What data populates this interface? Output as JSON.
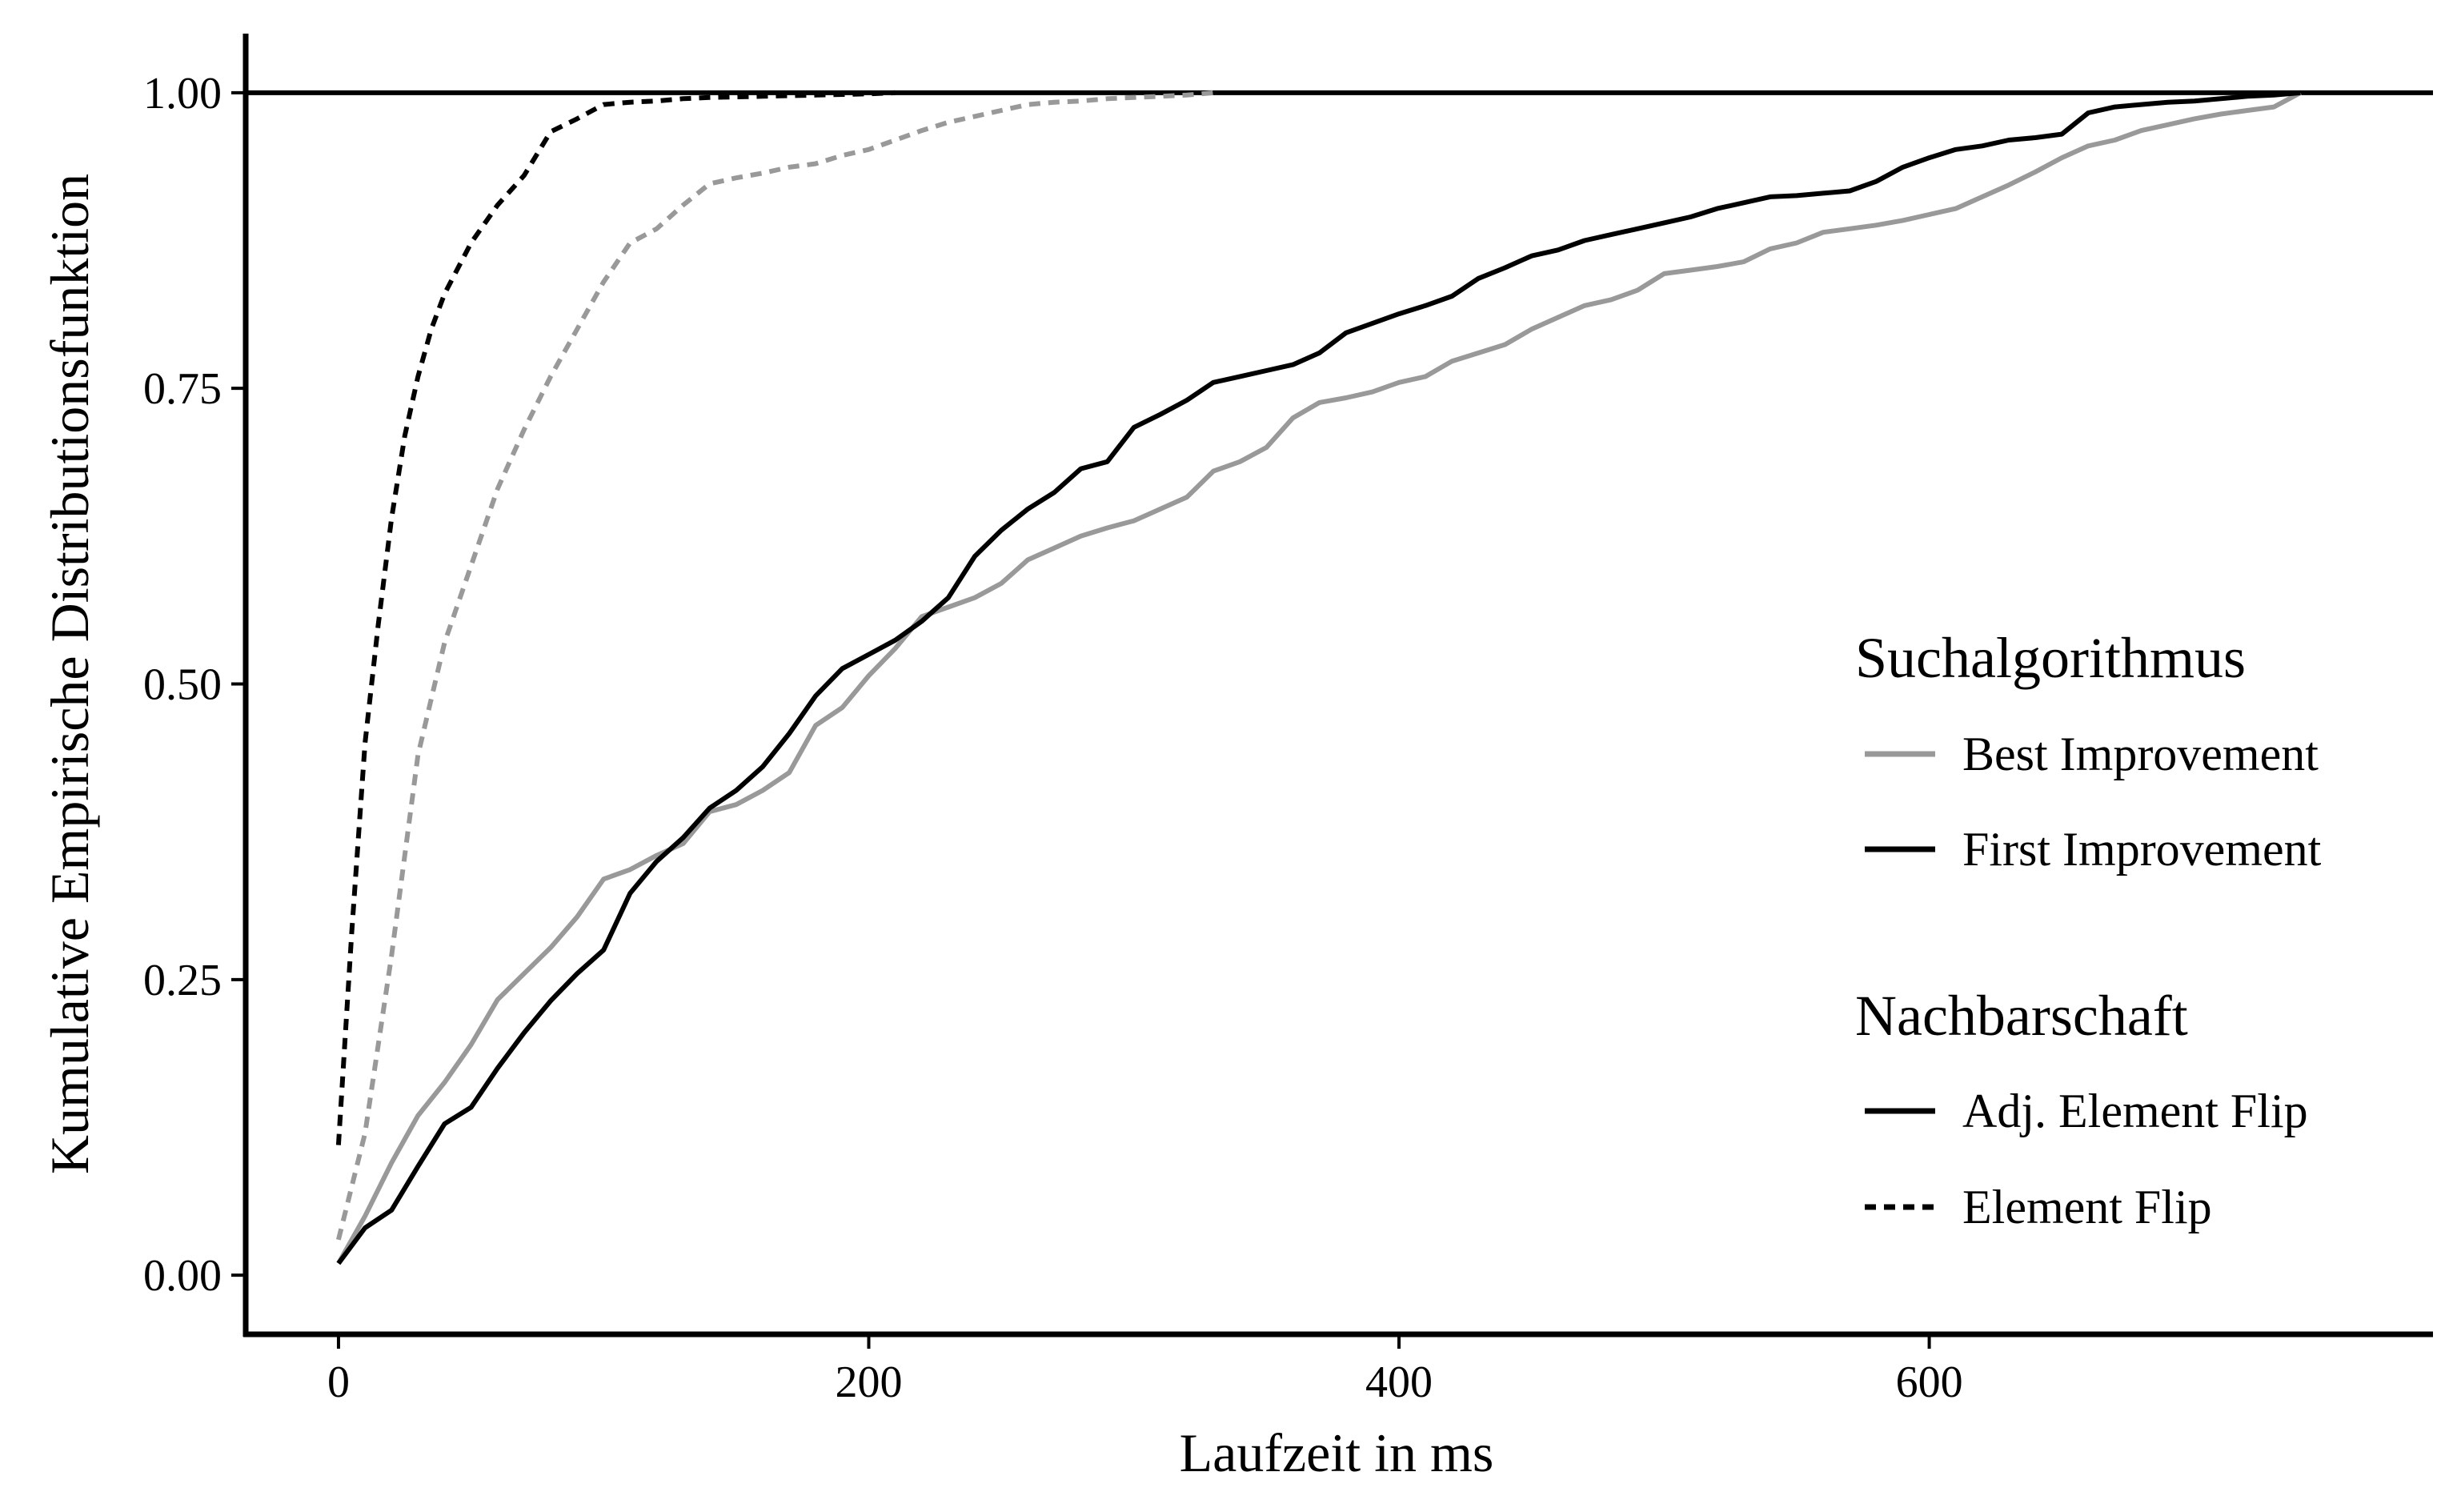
{
  "chart_data": {
    "type": "line",
    "title": "",
    "xlabel": "Laufzeit in ms",
    "ylabel": "Kumulative Empirische Distributionsfunktion",
    "xlim": [
      -35,
      790
    ],
    "ylim": [
      -0.05,
      1.05
    ],
    "x_ticks": [
      0,
      200,
      400,
      600
    ],
    "x_tick_labels": [
      "0",
      "200",
      "400",
      "600"
    ],
    "y_ticks": [
      0,
      0.25,
      0.5,
      0.75,
      1.0
    ],
    "y_tick_labels": [
      "0.00",
      "0.25",
      "0.50",
      "0.75",
      "1.00"
    ],
    "grid": false,
    "reference_line": {
      "y": 1.0
    },
    "legend_position": "right",
    "legend": [
      {
        "title": "Suchalgorithmus",
        "entries": [
          {
            "label": "Best Improvement",
            "color": "#999999",
            "dash": "solid"
          },
          {
            "label": "First Improvement",
            "color": "#000000",
            "dash": "solid"
          }
        ]
      },
      {
        "title": "Nachbarschaft",
        "entries": [
          {
            "label": "Adj. Element Flip",
            "color": "#000000",
            "dash": "solid"
          },
          {
            "label": "Element Flip",
            "color": "#000000",
            "dash": "dashed"
          }
        ]
      }
    ],
    "series": [
      {
        "algorithm": "Best Improvement",
        "neighborhood": "Adj. Element Flip",
        "color": "#999999",
        "dash": "solid",
        "x": [
          0,
          10,
          20,
          30,
          40,
          50,
          60,
          70,
          80,
          90,
          100,
          110,
          120,
          130,
          140,
          150,
          160,
          170,
          180,
          190,
          200,
          210,
          220,
          230,
          240,
          250,
          260,
          270,
          280,
          290,
          300,
          310,
          320,
          330,
          340,
          350,
          360,
          370,
          380,
          390,
          400,
          410,
          420,
          430,
          440,
          450,
          460,
          470,
          480,
          490,
          500,
          510,
          520,
          530,
          540,
          550,
          560,
          570,
          580,
          590,
          600,
          610,
          620,
          630,
          640,
          650,
          660,
          670,
          680,
          690,
          700,
          710,
          720,
          730,
          740
        ],
        "y": [
          0.01,
          0.05,
          0.095,
          0.135,
          0.163,
          0.195,
          0.233,
          0.255,
          0.277,
          0.303,
          0.335,
          0.343,
          0.355,
          0.365,
          0.392,
          0.398,
          0.41,
          0.425,
          0.465,
          0.48,
          0.507,
          0.53,
          0.557,
          0.565,
          0.573,
          0.585,
          0.605,
          0.615,
          0.625,
          0.632,
          0.638,
          0.648,
          0.658,
          0.68,
          0.688,
          0.7,
          0.725,
          0.738,
          0.742,
          0.747,
          0.755,
          0.76,
          0.773,
          0.78,
          0.787,
          0.8,
          0.81,
          0.82,
          0.825,
          0.833,
          0.847,
          0.85,
          0.853,
          0.857,
          0.868,
          0.873,
          0.882,
          0.885,
          0.888,
          0.892,
          0.897,
          0.902,
          0.912,
          0.922,
          0.933,
          0.945,
          0.955,
          0.96,
          0.968,
          0.973,
          0.978,
          0.982,
          0.985,
          0.988,
          1.0
        ]
      },
      {
        "algorithm": "First Improvement",
        "neighborhood": "Adj. Element Flip",
        "color": "#000000",
        "dash": "solid",
        "x": [
          0,
          10,
          20,
          30,
          40,
          50,
          60,
          70,
          80,
          90,
          100,
          110,
          120,
          130,
          140,
          150,
          160,
          170,
          180,
          190,
          200,
          210,
          220,
          230,
          240,
          250,
          260,
          270,
          280,
          290,
          300,
          310,
          320,
          330,
          340,
          350,
          360,
          370,
          380,
          390,
          400,
          410,
          420,
          430,
          440,
          450,
          460,
          470,
          480,
          490,
          500,
          510,
          520,
          530,
          540,
          550,
          560,
          570,
          580,
          590,
          600,
          610,
          620,
          630,
          640,
          650,
          660,
          670,
          680,
          690,
          700,
          710,
          720,
          730,
          740
        ],
        "y": [
          0.01,
          0.04,
          0.055,
          0.092,
          0.128,
          0.142,
          0.175,
          0.205,
          0.232,
          0.255,
          0.275,
          0.323,
          0.35,
          0.37,
          0.395,
          0.41,
          0.43,
          0.458,
          0.49,
          0.513,
          0.525,
          0.537,
          0.553,
          0.573,
          0.608,
          0.63,
          0.648,
          0.662,
          0.682,
          0.688,
          0.717,
          0.728,
          0.74,
          0.755,
          0.76,
          0.765,
          0.77,
          0.78,
          0.797,
          0.805,
          0.813,
          0.82,
          0.828,
          0.843,
          0.852,
          0.862,
          0.867,
          0.875,
          0.88,
          0.885,
          0.89,
          0.895,
          0.902,
          0.907,
          0.912,
          0.913,
          0.915,
          0.917,
          0.925,
          0.937,
          0.945,
          0.952,
          0.955,
          0.96,
          0.962,
          0.965,
          0.983,
          0.988,
          0.99,
          0.992,
          0.993,
          0.995,
          0.997,
          0.998,
          1.0
        ]
      },
      {
        "algorithm": "Best Improvement",
        "neighborhood": "Element Flip",
        "color": "#999999",
        "dash": "dashed",
        "x": [
          0,
          10,
          20,
          30,
          40,
          50,
          60,
          70,
          80,
          90,
          100,
          110,
          120,
          130,
          140,
          150,
          160,
          170,
          180,
          190,
          200,
          210,
          220,
          230,
          240,
          250,
          260,
          270,
          280,
          290,
          300,
          310,
          320,
          330
        ],
        "y": [
          0.03,
          0.12,
          0.27,
          0.44,
          0.535,
          0.6,
          0.665,
          0.715,
          0.76,
          0.8,
          0.84,
          0.873,
          0.885,
          0.905,
          0.923,
          0.928,
          0.932,
          0.937,
          0.94,
          0.947,
          0.952,
          0.96,
          0.968,
          0.975,
          0.98,
          0.985,
          0.99,
          0.992,
          0.993,
          0.995,
          0.996,
          0.997,
          0.998,
          1.0
        ]
      },
      {
        "algorithm": "First Improvement",
        "neighborhood": "Element Flip",
        "color": "#000000",
        "dash": "dashed",
        "x": [
          0,
          5,
          10,
          15,
          20,
          25,
          30,
          35,
          40,
          50,
          60,
          70,
          80,
          90,
          100,
          110,
          120,
          130,
          140,
          160,
          180,
          200,
          210
        ],
        "y": [
          0.11,
          0.29,
          0.45,
          0.55,
          0.64,
          0.71,
          0.76,
          0.8,
          0.83,
          0.873,
          0.905,
          0.93,
          0.967,
          0.978,
          0.99,
          0.992,
          0.993,
          0.995,
          0.996,
          0.997,
          0.998,
          0.999,
          1.0
        ]
      }
    ]
  }
}
